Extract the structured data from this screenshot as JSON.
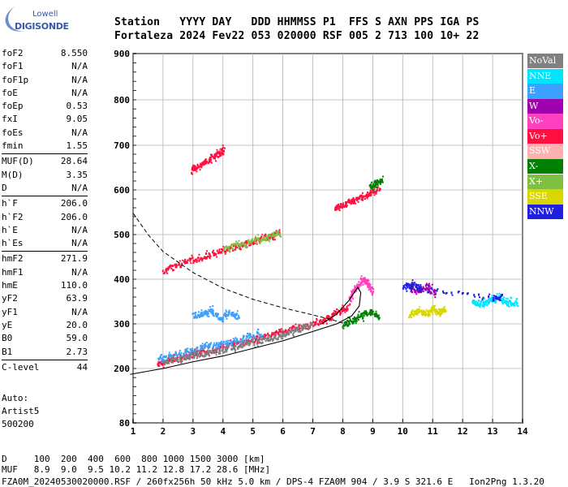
{
  "logo": {
    "brand": "Lowell",
    "product": "DIGISONDE"
  },
  "header": {
    "line1": "Station   YYYY DAY   DDD HHMMSS P1  FFS S AXN PPS IGA PS",
    "line2": "Fortaleza 2024 Fev22 053 020000 RSF 005 2 713 100 10+ 22"
  },
  "params": [
    [
      {
        "k": "foF2",
        "v": "8.550"
      },
      {
        "k": "foF1",
        "v": "N/A"
      },
      {
        "k": "foF1p",
        "v": "N/A"
      },
      {
        "k": "foE",
        "v": "N/A"
      },
      {
        "k": "foEp",
        "v": "0.53"
      },
      {
        "k": "fxI",
        "v": "9.05"
      },
      {
        "k": "foEs",
        "v": "N/A"
      },
      {
        "k": "fmin",
        "v": "1.55"
      }
    ],
    [
      {
        "k": "MUF(D)",
        "v": "28.64"
      },
      {
        "k": "M(D)",
        "v": "3.35"
      },
      {
        "k": "D",
        "v": "N/A"
      }
    ],
    [
      {
        "k": "h`F",
        "v": "206.0"
      },
      {
        "k": "h`F2",
        "v": "206.0"
      },
      {
        "k": "h`E",
        "v": "N/A"
      },
      {
        "k": "h`Es",
        "v": "N/A"
      }
    ],
    [
      {
        "k": "hmF2",
        "v": "271.9"
      },
      {
        "k": "hmF1",
        "v": "N/A"
      },
      {
        "k": "hmE",
        "v": "110.0"
      },
      {
        "k": "yF2",
        "v": "63.9"
      },
      {
        "k": "yF1",
        "v": "N/A"
      },
      {
        "k": "yE",
        "v": "20.0"
      },
      {
        "k": "B0",
        "v": "59.0"
      },
      {
        "k": "B1",
        "v": "2.73"
      }
    ],
    [
      {
        "k": "C-level",
        "v": "44"
      }
    ]
  ],
  "auto": {
    "l1": "Auto:",
    "l2": "Artist5",
    "l3": "500200"
  },
  "legend": [
    {
      "label": "NoVal",
      "color": "#808080"
    },
    {
      "label": "NNE",
      "color": "#00e5ff"
    },
    {
      "label": "E",
      "color": "#3ca0ff"
    },
    {
      "label": "W",
      "color": "#a000b0"
    },
    {
      "label": "Vo-",
      "color": "#ff40c0"
    },
    {
      "label": "Vo+",
      "color": "#ff1040"
    },
    {
      "label": "SSW",
      "color": "#ffb0b0"
    },
    {
      "label": "X-",
      "color": "#008000"
    },
    {
      "label": "X+",
      "color": "#80c040"
    },
    {
      "label": "SSE",
      "color": "#d8d800"
    },
    {
      "label": "NNW",
      "color": "#2020e0"
    }
  ],
  "bottom": {
    "row1": "D     100  200  400  600  800 1000 1500 3000 [km]",
    "row2": "MUF   8.9  9.0  9.5 10.2 11.2 12.8 17.2 28.6 [MHz]",
    "row3": "FZA0M_20240530020000.RSF / 260fx256h 50 kHz 5.0 km / DPS-4 FZA0M 904 / 3.9 S 321.6 E   Ion2Png 1.3.20"
  },
  "chart_data": {
    "type": "scatter",
    "xlim": [
      1,
      14
    ],
    "ylim": [
      80,
      900
    ],
    "x_ticks": [
      "1",
      "2",
      "3",
      "4",
      "5",
      "6",
      "7",
      "8",
      "9",
      "10",
      "11",
      "12",
      "13",
      "14"
    ],
    "y_ticks": [
      "80",
      "200",
      "300",
      "400",
      "500",
      "600",
      "700",
      "800",
      "900"
    ],
    "y_tick_values": [
      80,
      200,
      300,
      400,
      500,
      600,
      700,
      800,
      900
    ],
    "grid": true,
    "profile_solid": [
      [
        0.9,
        187
      ],
      [
        2,
        200
      ],
      [
        3,
        215
      ],
      [
        4,
        228
      ],
      [
        5,
        245
      ],
      [
        6,
        262
      ],
      [
        7,
        283
      ],
      [
        7.8,
        300
      ],
      [
        8.3,
        318
      ],
      [
        8.55,
        340
      ],
      [
        8.6,
        370
      ],
      [
        8.5,
        382
      ],
      [
        8.2,
        352
      ],
      [
        7.8,
        322
      ],
      [
        7.3,
        300
      ]
    ],
    "muf_dashed": [
      [
        1,
        548
      ],
      [
        1.5,
        500
      ],
      [
        2,
        462
      ],
      [
        3,
        415
      ],
      [
        4,
        380
      ],
      [
        5,
        355
      ],
      [
        6,
        336
      ],
      [
        7,
        320
      ],
      [
        7.6,
        310
      ],
      [
        8.0,
        302
      ]
    ],
    "traces": [
      {
        "series": "Vo+",
        "x": [
          1.8,
          2.2,
          2.6,
          3.0,
          3.5,
          4.0,
          4.5,
          5.0,
          5.5,
          6.0,
          6.5,
          7.0,
          7.4,
          7.8,
          8.2
        ],
        "y": [
          212,
          220,
          226,
          233,
          241,
          250,
          258,
          266,
          275,
          284,
          295,
          300,
          312,
          326,
          345
        ]
      },
      {
        "series": "E",
        "x": [
          1.8,
          2.3,
          2.8,
          3.3,
          3.8,
          4.3,
          4.8,
          5.3
        ],
        "y": [
          222,
          230,
          240,
          250,
          255,
          262,
          272,
          282
        ]
      },
      {
        "series": "NoVal",
        "x": [
          2.0,
          2.5,
          3.0,
          3.5,
          4.0,
          4.5,
          5.0,
          5.5,
          6.0,
          6.5,
          7.0
        ],
        "y": [
          218,
          224,
          230,
          238,
          244,
          252,
          260,
          268,
          276,
          290,
          300
        ]
      },
      {
        "series": "Vo+",
        "x": [
          2.0,
          2.5,
          3.0,
          3.5,
          4.0,
          4.5,
          5.0,
          5.5,
          5.9
        ],
        "y": [
          422,
          433,
          446,
          456,
          466,
          476,
          487,
          497,
          508
        ]
      },
      {
        "series": "X+",
        "x": [
          4.0,
          4.5,
          5.0,
          5.5,
          5.9
        ],
        "y": [
          470,
          478,
          487,
          496,
          503
        ]
      },
      {
        "series": "Vo+",
        "x": [
          2.9,
          3.2,
          3.5,
          3.8,
          4.0
        ],
        "y": [
          645,
          658,
          670,
          682,
          690
        ]
      },
      {
        "series": "Vo+",
        "x": [
          7.7,
          8.0,
          8.3,
          8.6,
          8.9,
          9.2
        ],
        "y": [
          562,
          570,
          578,
          586,
          595,
          605
        ]
      },
      {
        "series": "X-",
        "x": [
          8.9,
          9.1,
          9.3
        ],
        "y": [
          610,
          618,
          625
        ]
      },
      {
        "series": "E",
        "x": [
          3.0,
          3.3,
          3.6,
          3.9,
          4.2,
          4.5
        ],
        "y": [
          320,
          325,
          330,
          312,
          328,
          318
        ]
      },
      {
        "series": "SSE",
        "x": [
          10.2,
          10.5,
          10.8,
          11.0,
          11.2,
          11.4
        ],
        "y": [
          320,
          330,
          325,
          338,
          328,
          335
        ]
      },
      {
        "series": "NNE",
        "x": [
          12.3,
          12.6,
          12.9,
          13.2,
          13.5,
          13.8
        ],
        "y": [
          350,
          345,
          355,
          360,
          348,
          352
        ]
      },
      {
        "series": "Vo-",
        "x": [
          8.2,
          8.4,
          8.6,
          8.8,
          9.0
        ],
        "y": [
          360,
          380,
          400,
          395,
          370
        ]
      },
      {
        "series": "X-",
        "x": [
          8.0,
          8.3,
          8.6,
          8.9,
          9.2
        ],
        "y": [
          300,
          310,
          320,
          330,
          320
        ]
      },
      {
        "series": "W",
        "x": [
          10.2,
          10.5,
          10.8,
          11.1
        ],
        "y": [
          380,
          375,
          385,
          370
        ]
      },
      {
        "series": "NNW",
        "x": [
          10.0,
          10.3,
          10.6,
          13.0,
          13.3
        ],
        "y": [
          385,
          390,
          380,
          360,
          365
        ]
      }
    ]
  }
}
